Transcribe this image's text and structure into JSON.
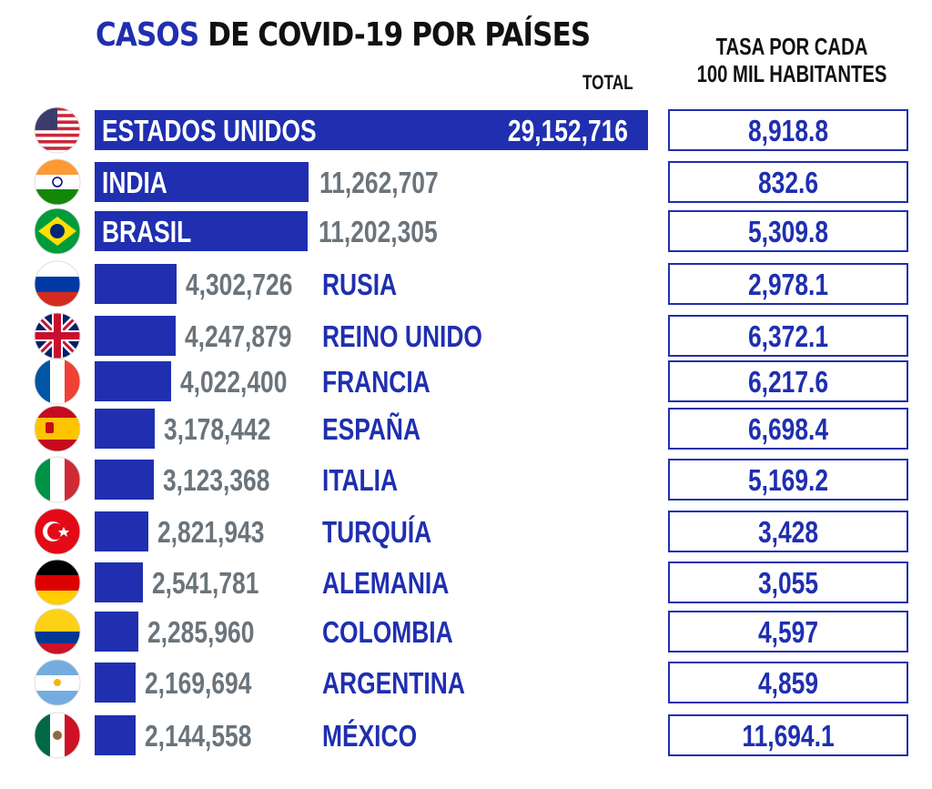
{
  "title_accent": "CASOS",
  "title_rest": " DE COVID-19 POR PAÍSES",
  "total_header": "TOTAL",
  "rate_header_line1": "TASA POR CADA",
  "rate_header_line2": "100 MIL HABITANTES",
  "colors": {
    "bar": "#1f2fb0",
    "label_blue": "#1f2fb0",
    "value_gray": "#6b747b",
    "box_border": "#1f2fb0",
    "white": "#ffffff"
  },
  "chart_data": {
    "type": "bar",
    "orientation": "horizontal",
    "categories": [
      "ESTADOS UNIDOS",
      "INDIA",
      "BRASIL",
      "RUSIA",
      "REINO UNIDO",
      "FRANCIA",
      "ESPAÑA",
      "ITALIA",
      "TURQUÍA",
      "ALEMANIA",
      "COLOMBIA",
      "ARGENTINA",
      "MÉXICO"
    ],
    "values": [
      29152716,
      11262707,
      11202305,
      4302726,
      4247879,
      4022400,
      3178442,
      3123368,
      2821943,
      2541781,
      2285960,
      2169694,
      2144558
    ],
    "value_labels": [
      "29,152,716",
      "11,262,707",
      "11,202,305",
      "4,302,726",
      "4,247,879",
      "4,022,400",
      "3,178,442",
      "3,123,368",
      "2,821,943",
      "2,541,781",
      "2,285,960",
      "2,169,694",
      "2,144,558"
    ],
    "rate_labels": [
      "8,918.8",
      "832.6",
      "5,309.8",
      "2,978.1",
      "6,372.1",
      "6,217.6",
      "6,698.4",
      "5,169.2",
      "3,428",
      "3,055",
      "4,597",
      "4,859",
      "11,694.1"
    ],
    "flags": [
      "flag-usa",
      "flag-india",
      "flag-brazil",
      "flag-russia",
      "flag-uk",
      "flag-france",
      "flag-spain",
      "flag-italy",
      "flag-turkey",
      "flag-germany",
      "flag-colombia",
      "flag-argentina",
      "flag-mexico"
    ]
  }
}
